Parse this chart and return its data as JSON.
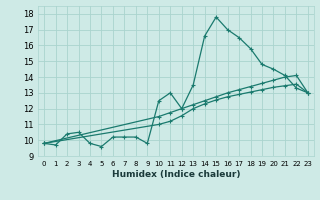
{
  "xlabel": "Humidex (Indice chaleur)",
  "bg_color": "#ceeae6",
  "grid_color": "#aad4ce",
  "line_color": "#1a7a6e",
  "xlim": [
    -0.5,
    23.5
  ],
  "ylim": [
    9.0,
    18.5
  ],
  "xticks": [
    0,
    1,
    2,
    3,
    4,
    5,
    6,
    7,
    8,
    9,
    10,
    11,
    12,
    13,
    14,
    15,
    16,
    17,
    18,
    19,
    20,
    21,
    22,
    23
  ],
  "yticks": [
    9,
    10,
    11,
    12,
    13,
    14,
    15,
    16,
    17,
    18
  ],
  "series1_x": [
    0,
    1,
    2,
    3,
    4,
    5,
    6,
    7,
    8,
    9,
    10,
    11,
    12,
    13,
    14,
    15,
    16,
    17,
    18,
    19,
    20,
    21,
    22,
    23
  ],
  "series1_y": [
    9.8,
    9.7,
    10.4,
    10.5,
    9.8,
    9.6,
    10.2,
    10.2,
    10.2,
    9.8,
    12.5,
    13.0,
    12.0,
    13.5,
    16.6,
    17.8,
    17.0,
    16.5,
    15.8,
    14.8,
    14.5,
    14.1,
    13.3,
    13.0
  ],
  "series2_x": [
    0,
    10,
    11,
    12,
    13,
    14,
    15,
    16,
    17,
    18,
    19,
    20,
    21,
    22,
    23
  ],
  "series2_y": [
    9.8,
    11.0,
    11.2,
    11.55,
    12.0,
    12.3,
    12.55,
    12.75,
    12.9,
    13.05,
    13.2,
    13.35,
    13.45,
    13.55,
    13.0
  ],
  "series3_x": [
    0,
    10,
    11,
    12,
    13,
    14,
    15,
    16,
    17,
    18,
    19,
    20,
    21,
    22,
    23
  ],
  "series3_y": [
    9.8,
    11.5,
    11.75,
    12.0,
    12.25,
    12.5,
    12.75,
    13.0,
    13.2,
    13.4,
    13.6,
    13.8,
    14.0,
    14.1,
    13.0
  ]
}
